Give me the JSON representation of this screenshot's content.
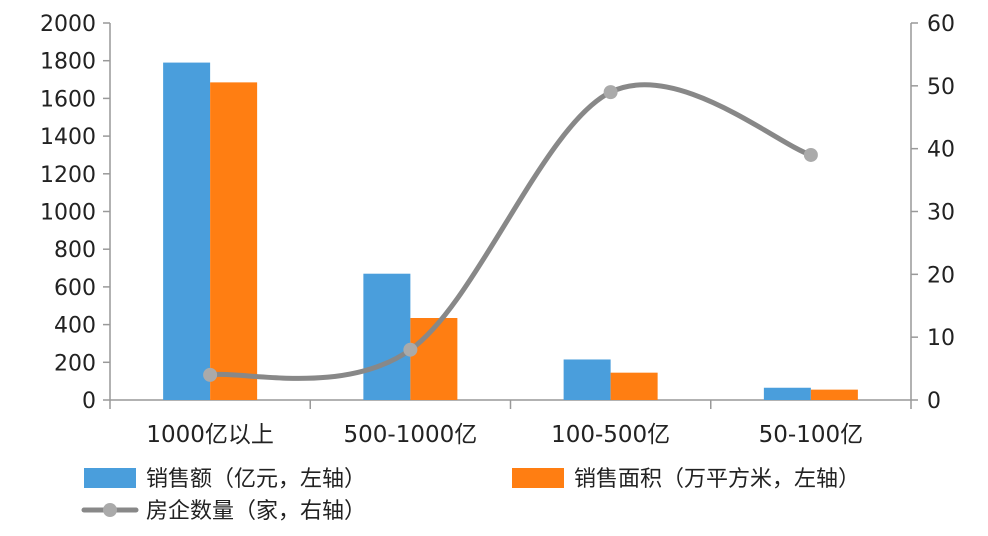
{
  "chart_data": {
    "type": "bar",
    "categories": [
      "1000亿以上",
      "500-1000亿",
      "100-500亿",
      "50-100亿"
    ],
    "series": [
      {
        "name": "销售额（亿元，左轴）",
        "type": "bar",
        "axis": "left",
        "color": "#4a9edc",
        "values": [
          1790,
          670,
          215,
          65
        ]
      },
      {
        "name": "销售面积（万平方米，左轴）",
        "type": "bar",
        "axis": "left",
        "color": "#ff7e12",
        "values": [
          1685,
          435,
          145,
          55
        ]
      },
      {
        "name": "房企数量（家，右轴）",
        "type": "line",
        "axis": "right",
        "color": "#888888",
        "smooth": true,
        "values": [
          4,
          8,
          49,
          39
        ]
      }
    ],
    "y_left": {
      "min": 0,
      "max": 2000,
      "ticks": [
        "0",
        "200",
        "400",
        "600",
        "800",
        "1000",
        "1200",
        "1400",
        "1600",
        "1800",
        "2000"
      ]
    },
    "y_right": {
      "min": 0,
      "max": 60,
      "ticks": [
        "0",
        "10",
        "20",
        "30",
        "40",
        "50",
        "60"
      ]
    },
    "legend_position": "bottom",
    "grid": false
  }
}
